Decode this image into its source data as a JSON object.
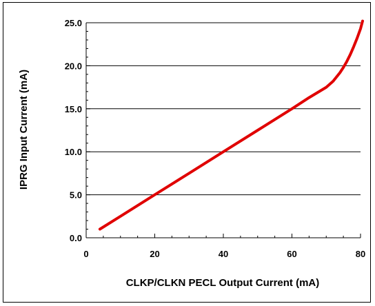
{
  "chart_data": {
    "type": "line",
    "title": "",
    "xlabel": "CLKP/CLKN PECL Output Current (mA)",
    "ylabel": "IPRG Input Current (mA)",
    "xlim": [
      0,
      80
    ],
    "ylim": [
      0,
      25
    ],
    "xticks": [
      0,
      20,
      40,
      60,
      80
    ],
    "xtick_labels": [
      "0",
      "20",
      "40",
      "60",
      "80"
    ],
    "yticks": [
      0,
      5,
      10,
      15,
      20,
      25
    ],
    "ytick_labels": [
      "0.0",
      "5.0",
      "10.0",
      "15.0",
      "20.0",
      "25.0"
    ],
    "grid": "horizontal major lines",
    "legend": "none",
    "series": [
      {
        "color": "#e00000",
        "x": [
          4,
          10,
          20,
          30,
          40,
          50,
          60,
          65,
          70,
          72,
          74,
          75,
          76,
          77,
          78,
          79,
          80,
          80.6
        ],
        "y": [
          1.0,
          2.5,
          5.0,
          7.5,
          10.0,
          12.5,
          15.0,
          16.3,
          17.5,
          18.2,
          19.2,
          19.8,
          20.5,
          21.3,
          22.2,
          23.2,
          24.3,
          25.2
        ]
      }
    ]
  }
}
